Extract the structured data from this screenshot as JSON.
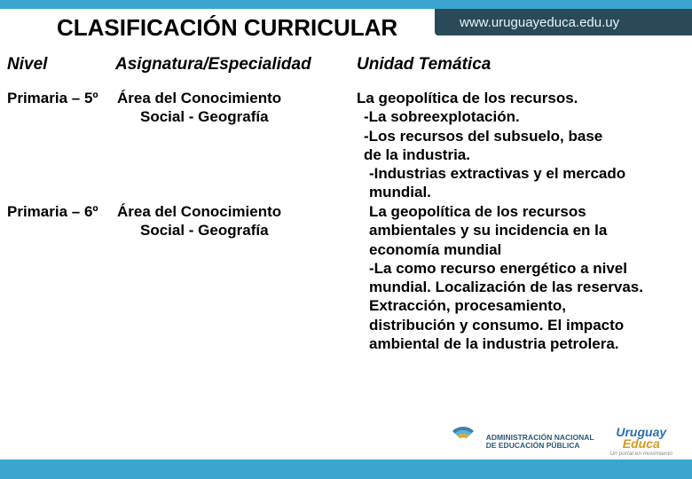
{
  "colors": {
    "top_bar": "#3aa6d0",
    "url_band_bg": "#2a4a5a",
    "url_band_text": "#e8f2f7",
    "text": "#000000",
    "anep_text": "#2b5a78",
    "uruguay_blue": "#2b6fae",
    "uruguay_gold": "#d49a1e"
  },
  "header": {
    "url": "www.uruguayeduca.edu.uy",
    "title": "CLASIFICACIÓN CURRICULAR"
  },
  "table": {
    "columns": {
      "nivel": "Nivel",
      "asignatura": "Asignatura/Especialidad",
      "unidad": "Unidad Temática"
    },
    "rows": [
      {
        "nivel": "Primaria – 5º",
        "asignatura_main": "Área del Conocimiento",
        "asignatura_sub": "Social - Geografía",
        "unidad_lines": [
          {
            "text": "La geopolítica de los recursos.",
            "indent": 0
          },
          {
            "text": "-La sobreexplotación.",
            "indent": 1
          },
          {
            "text": "-Los recursos del subsuelo, base",
            "indent": 1
          },
          {
            "text": "de la industria.",
            "indent": 1
          },
          {
            "text": "-Industrias extractivas y el mercado",
            "indent": 2
          },
          {
            "text": "mundial.",
            "indent": 2
          }
        ]
      },
      {
        "nivel": "Primaria – 6º",
        "asignatura_main": "Área del Conocimiento",
        "asignatura_sub": "Social - Geografía",
        "unidad_lines": [
          {
            "text": "La geopolítica de los recursos",
            "indent": 2
          },
          {
            "text": "ambientales y su incidencia en la",
            "indent": 2
          },
          {
            "text": "economía mundial",
            "indent": 2
          },
          {
            "text": "-La como recurso energético a nivel",
            "indent": 2
          },
          {
            "text": "mundial. Localización de las reservas.",
            "indent": 2
          },
          {
            "text": "Extracción, procesamiento,",
            "indent": 2
          },
          {
            "text": "distribución y consumo. El impacto",
            "indent": 2
          },
          {
            "text": "ambiental de la industria petrolera.",
            "indent": 2
          }
        ]
      }
    ]
  },
  "footer": {
    "anep_line1": "ADMINISTRACIÓN NACIONAL",
    "anep_line2": "DE EDUCACIÓN PÚBLICA",
    "uruguay_line1": "Uruguay",
    "uruguay_line2": "Educa",
    "uruguay_tag": "Un portal en movimiento"
  }
}
